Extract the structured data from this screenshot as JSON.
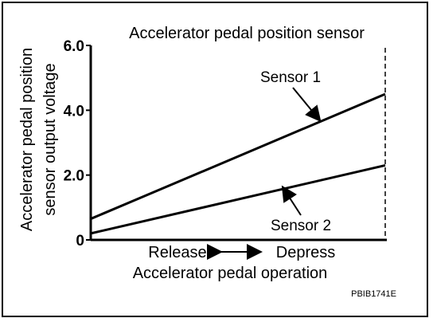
{
  "chart_data": {
    "type": "line",
    "title": "Accelerator pedal position sensor",
    "ylabel_lines": [
      "Accelerator pedal position",
      "sensor output voltage"
    ],
    "xlabel": "Accelerator pedal operation",
    "x_ticks": {
      "left": "Release",
      "right": "Depress"
    },
    "ylim": [
      0,
      6.0
    ],
    "y_ticks": [
      {
        "value": 0,
        "label": "0"
      },
      {
        "value": 2.0,
        "label": "2.0"
      },
      {
        "value": 4.0,
        "label": "4.0"
      },
      {
        "value": 6.0,
        "label": "6.0"
      }
    ],
    "x": [
      0,
      1
    ],
    "series": [
      {
        "name": "Sensor 1",
        "values": [
          0.65,
          4.5
        ]
      },
      {
        "name": "Sensor 2",
        "values": [
          0.2,
          2.3
        ]
      }
    ],
    "annotations": {
      "full_depress_line": "dashed"
    },
    "figure_code": "PBIB1741E"
  }
}
